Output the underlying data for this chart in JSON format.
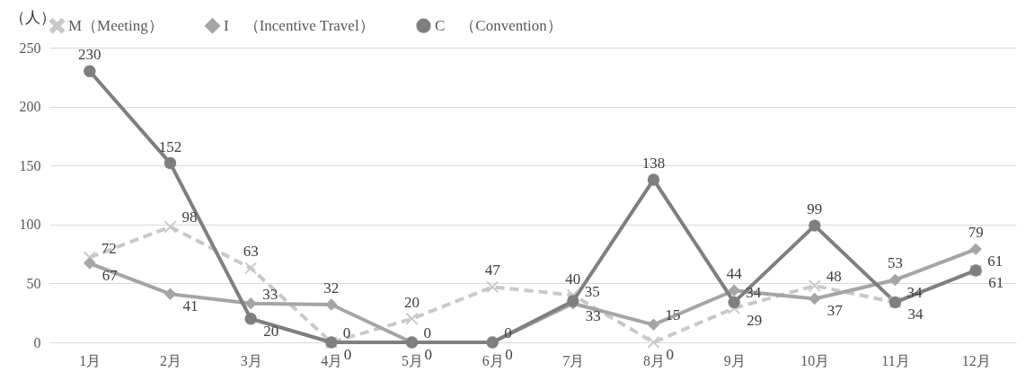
{
  "chart_data": {
    "type": "line",
    "ylabel": "（人）",
    "categories": [
      "1月",
      "2月",
      "3月",
      "4月",
      "5月",
      "6月",
      "7月",
      "8月",
      "9月",
      "10月",
      "11月",
      "12月"
    ],
    "series": [
      {
        "name": "M（Meeting）",
        "color": "#c9c9c9",
        "marker": "cross",
        "line_style": "dashed",
        "values": [
          72,
          98,
          63,
          0,
          20,
          47,
          40,
          0,
          29,
          48,
          34,
          61
        ]
      },
      {
        "name": "I　（Incentive Travel）",
        "color": "#a5a5a5",
        "marker": "diamond",
        "line_style": "solid",
        "values": [
          67,
          41,
          33,
          32,
          0,
          0,
          33,
          15,
          44,
          37,
          53,
          79
        ]
      },
      {
        "name": "C　（Convention）",
        "color": "#7f7f7f",
        "marker": "circle",
        "line_style": "solid",
        "values": [
          230,
          152,
          20,
          0,
          0,
          0,
          35,
          138,
          34,
          99,
          34,
          61
        ]
      }
    ],
    "ylim": [
      0,
      250
    ],
    "yticks": [
      0,
      50,
      100,
      150,
      200,
      250
    ],
    "grid": "y",
    "legend": "top",
    "data_labels": true
  }
}
